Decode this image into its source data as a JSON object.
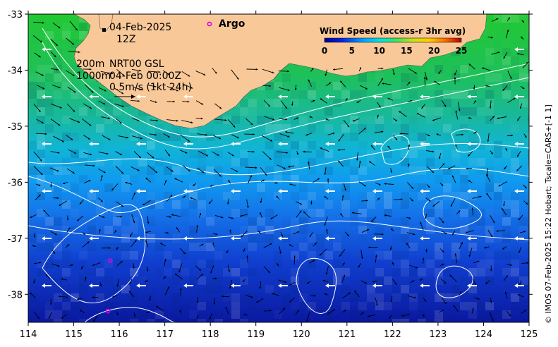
{
  "map": {
    "lon_ticks": [
      "114",
      "115",
      "116",
      "117",
      "118",
      "119",
      "120",
      "121",
      "122",
      "123",
      "124",
      "125"
    ],
    "lat_ticks": [
      "-33",
      "-34",
      "-35",
      "-36",
      "-37",
      "-38"
    ],
    "lon_range": [
      114,
      125
    ],
    "lat_range": [
      -38.5,
      -33
    ],
    "annotations": {
      "date": "04-Feb-2025",
      "time": "12Z",
      "isobath_line1": "200m",
      "isobath_line2": "1000m",
      "product": "NRT00 GSL",
      "product_time": "04-Feb 00:00Z",
      "scale_text": "0.5m/s (1kt 24h)"
    },
    "argo_label": "Argo",
    "argo_floats": [
      {
        "lon": 115.8,
        "lat": -37.4
      },
      {
        "lon": 115.75,
        "lat": -38.3
      }
    ],
    "legend": {
      "title": "Wind Speed (access-r 3hr avg)",
      "ticks": [
        "0",
        "5",
        "10",
        "15",
        "20",
        "25"
      ],
      "range": [
        0,
        25
      ]
    },
    "side_credit": "© IMOS 07-Feb-2025 15:22 Hobart; Tscale=CARS+[-1 1]",
    "colors": {
      "land": "#f8c898",
      "argo": "#e000e0",
      "contour": "#ffffff"
    }
  }
}
